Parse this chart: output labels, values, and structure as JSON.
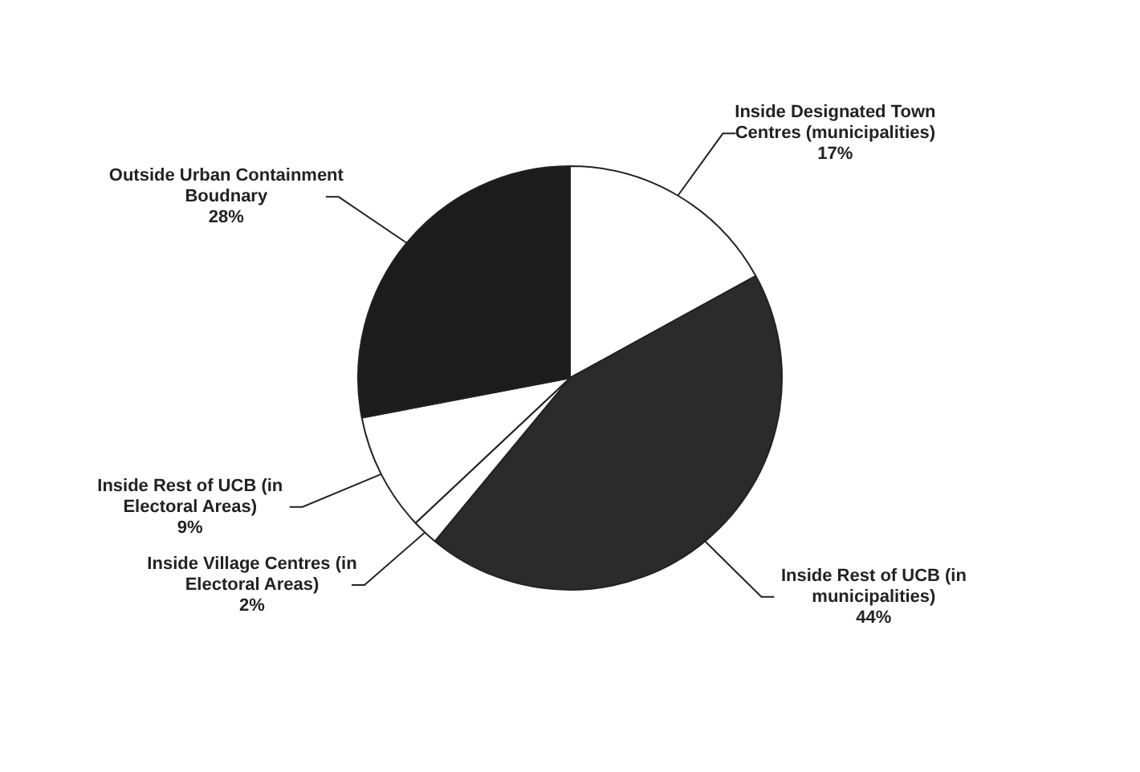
{
  "chart_data": {
    "type": "pie",
    "categories": [
      "Inside Designated Town Centres (municipalities)",
      "Inside Rest of UCB (in municipalities)",
      "Inside Village Centres (in Electoral Areas)",
      "Inside Rest of UCB (in Electoral Areas)",
      "Outside Urban Containment Boudnary"
    ],
    "values": [
      17,
      44,
      2,
      9,
      28
    ],
    "value_labels": [
      "17%",
      "44%",
      "2%",
      "9%",
      "28%"
    ],
    "colors": [
      "#ffffff",
      "#2b2b2b",
      "#ffffff",
      "#ffffff",
      "#1c1c1c"
    ],
    "legend": false
  }
}
